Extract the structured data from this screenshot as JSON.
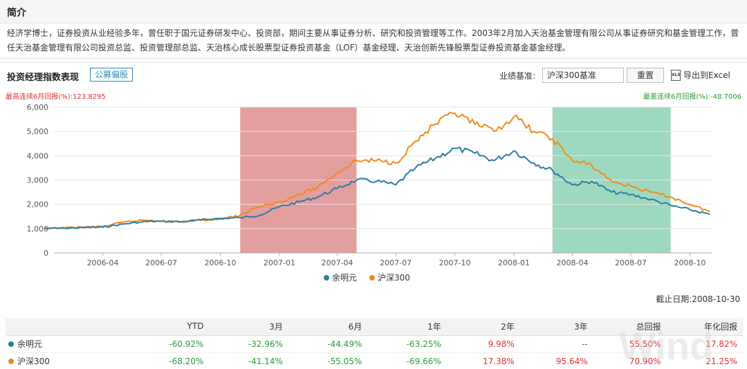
{
  "intro": {
    "title": "简介",
    "text": "经济学博士，证券投资从业经验多年，曾任职于国元证券研发中心、投资部，期间主要从事证券分析、研究和投资管理等工作。2003年2月加入天治基金管理有限公司从事证券研究和基金管理工作，曾任天治基金管理有限公司投资总监、投资管理部总监、天治核心成长股票型证券投资基金（LOF）基金经理、天治创新先锋股票型证券投资基金基金经理。"
  },
  "toolbar": {
    "title": "投资经理指数表现",
    "tag": "公募偏股",
    "benchmark_label": "业绩基准:",
    "benchmark_value": "沪深300基准",
    "reset_label": "重置",
    "export_label": "导出到Excel",
    "export_icon": "excel-icon",
    "export_icon_text": "XLS"
  },
  "stats": {
    "best_label": "最高连续6月回报(%):",
    "best_value": "123.8295",
    "worst_label": "最差连续6月回报(%):",
    "worst_value": "-48.7006"
  },
  "colors": {
    "manager": "#2b7ca3",
    "benchmark": "#f08a1c",
    "best_band": "#e39e9e",
    "worst_band": "#9ed9bf"
  },
  "chart_data": {
    "type": "line",
    "x_ticks": [
      "2006-04",
      "2006-07",
      "2006-10",
      "2007-01",
      "2007-04",
      "2007-07",
      "2007-10",
      "2008-01",
      "2008-04",
      "2008-07",
      "2008-10"
    ],
    "ylim": [
      0,
      6000
    ],
    "y_ticks": [
      "0",
      "1,000",
      "2,000",
      "3,000",
      "4,000",
      "5,000",
      "6,000"
    ],
    "grid": true,
    "legend_position": "bottom",
    "highlight_best": [
      "2006-11",
      "2007-05"
    ],
    "highlight_worst": [
      "2008-03",
      "2008-09"
    ],
    "series": [
      {
        "name": "余明元",
        "points": [
          [
            "2006-01",
            1000
          ],
          [
            "2006-02",
            1020
          ],
          [
            "2006-03",
            1040
          ],
          [
            "2006-04",
            1060
          ],
          [
            "2006-05",
            1180
          ],
          [
            "2006-06",
            1280
          ],
          [
            "2006-07",
            1300
          ],
          [
            "2006-08",
            1280
          ],
          [
            "2006-09",
            1360
          ],
          [
            "2006-10",
            1420
          ],
          [
            "2006-11",
            1450
          ],
          [
            "2006-12",
            1550
          ],
          [
            "2007-01",
            1900
          ],
          [
            "2007-02",
            2100
          ],
          [
            "2007-03",
            2300
          ],
          [
            "2007-04",
            2650
          ],
          [
            "2007-05",
            3000
          ],
          [
            "2007-06",
            2950
          ],
          [
            "2007-07",
            2800
          ],
          [
            "2007-08",
            3500
          ],
          [
            "2007-09",
            3900
          ],
          [
            "2007-10",
            4300
          ],
          [
            "2007-11",
            4100
          ],
          [
            "2007-12",
            3800
          ],
          [
            "2008-01",
            4200
          ],
          [
            "2008-02",
            3700
          ],
          [
            "2008-03",
            3400
          ],
          [
            "2008-04",
            2800
          ],
          [
            "2008-05",
            2950
          ],
          [
            "2008-06",
            2500
          ],
          [
            "2008-07",
            2400
          ],
          [
            "2008-08",
            2200
          ],
          [
            "2008-09",
            1950
          ],
          [
            "2008-10",
            1780
          ],
          [
            "2008-11",
            1580
          ]
        ]
      },
      {
        "name": "沪深300",
        "points": [
          [
            "2006-01",
            1000
          ],
          [
            "2006-02",
            1030
          ],
          [
            "2006-03",
            1060
          ],
          [
            "2006-04",
            1090
          ],
          [
            "2006-05",
            1250
          ],
          [
            "2006-06",
            1350
          ],
          [
            "2006-07",
            1320
          ],
          [
            "2006-08",
            1280
          ],
          [
            "2006-09",
            1340
          ],
          [
            "2006-10",
            1400
          ],
          [
            "2006-11",
            1550
          ],
          [
            "2006-12",
            1900
          ],
          [
            "2007-01",
            2100
          ],
          [
            "2007-02",
            2400
          ],
          [
            "2007-03",
            2700
          ],
          [
            "2007-04",
            3300
          ],
          [
            "2007-05",
            3800
          ],
          [
            "2007-06",
            3800
          ],
          [
            "2007-07",
            3700
          ],
          [
            "2007-08",
            4600
          ],
          [
            "2007-09",
            5300
          ],
          [
            "2007-10",
            5750
          ],
          [
            "2007-11",
            5300
          ],
          [
            "2007-12",
            5000
          ],
          [
            "2008-01",
            5600
          ],
          [
            "2008-02",
            5000
          ],
          [
            "2008-03",
            4700
          ],
          [
            "2008-04",
            3800
          ],
          [
            "2008-05",
            3600
          ],
          [
            "2008-06",
            2950
          ],
          [
            "2008-07",
            2750
          ],
          [
            "2008-08",
            2500
          ],
          [
            "2008-09",
            2300
          ],
          [
            "2008-10",
            2000
          ],
          [
            "2008-11",
            1700
          ]
        ]
      }
    ]
  },
  "as_of": {
    "label": "截止日期:",
    "value": "2008-10-30"
  },
  "table": {
    "headers": [
      "",
      "YTD",
      "3月",
      "6月",
      "1年",
      "2年",
      "3年",
      "总回报",
      "年化回报"
    ],
    "rows": [
      {
        "name": "余明元",
        "values": [
          "-60.92%",
          "-32.96%",
          "-44.49%",
          "-63.25%",
          "9.98%",
          "--",
          "55.50%",
          "17.82%"
        ]
      },
      {
        "name": "沪深300",
        "values": [
          "-68.20%",
          "-41.14%",
          "-55.05%",
          "-69.66%",
          "17.38%",
          "95.64%",
          "70.90%",
          "21.25%"
        ]
      }
    ]
  },
  "watermark": "Wind"
}
